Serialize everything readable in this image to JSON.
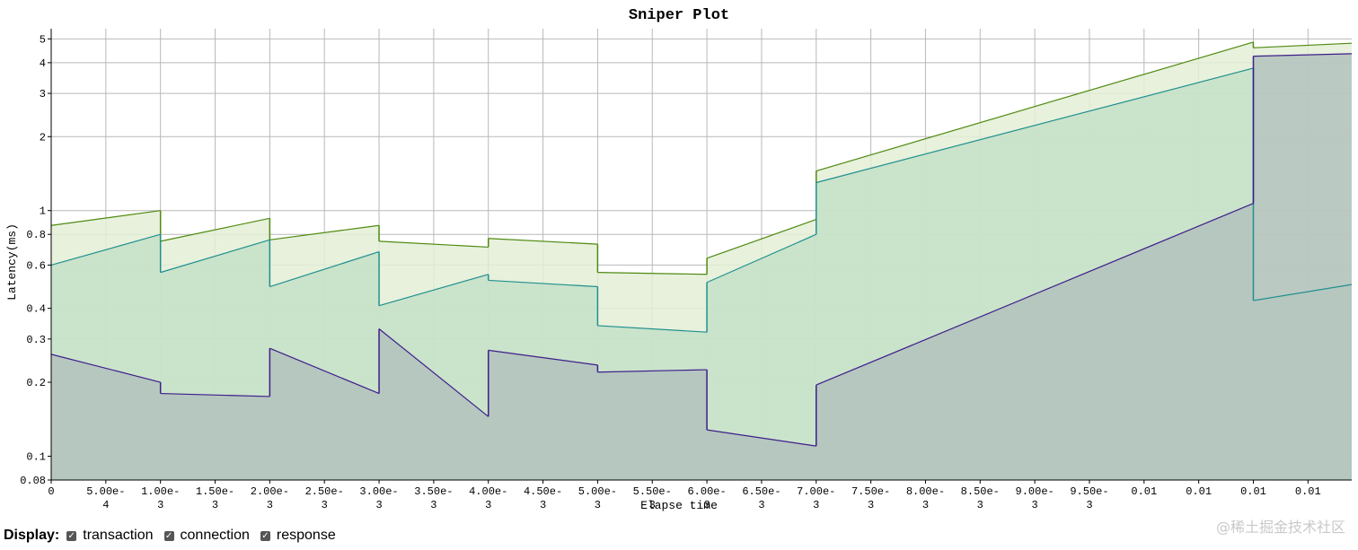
{
  "chart_data": {
    "type": "area",
    "title": "Sniper Plot",
    "xlabel": "Elapse time",
    "ylabel": "Latency(ms)",
    "y_scale": "log",
    "ylim": [
      0.08,
      5.5
    ],
    "xlim": [
      0,
      0.0119
    ],
    "grid": true,
    "y_ticks": [
      0.08,
      0.1,
      0.2,
      0.3,
      0.4,
      0.6,
      0.8,
      1,
      2,
      3,
      4,
      5
    ],
    "y_tick_labels": [
      "0.08",
      "0.1",
      "0.2",
      "0.3",
      "0.4",
      "0.6",
      "0.8",
      "1",
      "2",
      "3",
      "4",
      "5"
    ],
    "x_ticks": [
      0,
      0.0005,
      0.001,
      0.0015,
      0.002,
      0.0025,
      0.003,
      0.0035,
      0.004,
      0.0045,
      0.005,
      0.0055,
      0.006,
      0.0065,
      0.007,
      0.0075,
      0.008,
      0.0085,
      0.009,
      0.0095,
      0.01,
      0.0105,
      0.011,
      0.0115
    ],
    "x_tick_labels": [
      [
        "0"
      ],
      [
        "5.00e-",
        "4"
      ],
      [
        "1.00e-",
        "3"
      ],
      [
        "1.50e-",
        "3"
      ],
      [
        "2.00e-",
        "3"
      ],
      [
        "2.50e-",
        "3"
      ],
      [
        "3.00e-",
        "3"
      ],
      [
        "3.50e-",
        "3"
      ],
      [
        "4.00e-",
        "3"
      ],
      [
        "4.50e-",
        "3"
      ],
      [
        "5.00e-",
        "3"
      ],
      [
        "5.50e-",
        "3"
      ],
      [
        "6.00e-",
        "3"
      ],
      [
        "6.50e-",
        "3"
      ],
      [
        "7.00e-",
        "3"
      ],
      [
        "7.50e-",
        "3"
      ],
      [
        "8.00e-",
        "3"
      ],
      [
        "8.50e-",
        "3"
      ],
      [
        "9.00e-",
        "3"
      ],
      [
        "9.50e-",
        "3"
      ],
      [
        "0.01"
      ],
      [
        "0.01"
      ],
      [
        "0.01"
      ],
      [
        "0.01"
      ]
    ],
    "series": [
      {
        "name": "transaction",
        "color": "#4f8a10",
        "fill": "#e3eed6",
        "segments": [
          {
            "x0": 0,
            "x1": 0.001,
            "y0": 0.87,
            "y1": 1.0
          },
          {
            "x0": 0.001,
            "x1": 0.002,
            "y0": 0.75,
            "y1": 0.93
          },
          {
            "x0": 0.002,
            "x1": 0.003,
            "y0": 0.76,
            "y1": 0.87
          },
          {
            "x0": 0.003,
            "x1": 0.004,
            "y0": 0.75,
            "y1": 0.71
          },
          {
            "x0": 0.004,
            "x1": 0.005,
            "y0": 0.77,
            "y1": 0.73
          },
          {
            "x0": 0.005,
            "x1": 0.006,
            "y0": 0.56,
            "y1": 0.55
          },
          {
            "x0": 0.006,
            "x1": 0.007,
            "y0": 0.64,
            "y1": 0.92
          },
          {
            "x0": 0.007,
            "x1": 0.011,
            "y0": 1.45,
            "y1": 4.85
          },
          {
            "x0": 0.011,
            "x1": 0.0119,
            "y0": 4.6,
            "y1": 4.8
          }
        ]
      },
      {
        "name": "connection",
        "color": "#20908f",
        "fill": "#c4e0c8",
        "segments": [
          {
            "x0": 0,
            "x1": 0.001,
            "y0": 0.6,
            "y1": 0.8
          },
          {
            "x0": 0.001,
            "x1": 0.002,
            "y0": 0.56,
            "y1": 0.76
          },
          {
            "x0": 0.002,
            "x1": 0.003,
            "y0": 0.49,
            "y1": 0.68
          },
          {
            "x0": 0.003,
            "x1": 0.004,
            "y0": 0.41,
            "y1": 0.55
          },
          {
            "x0": 0.004,
            "x1": 0.005,
            "y0": 0.52,
            "y1": 0.49
          },
          {
            "x0": 0.005,
            "x1": 0.006,
            "y0": 0.34,
            "y1": 0.32
          },
          {
            "x0": 0.006,
            "x1": 0.007,
            "y0": 0.51,
            "y1": 0.8
          },
          {
            "x0": 0.007,
            "x1": 0.011,
            "y0": 1.3,
            "y1": 3.8
          },
          {
            "x0": 0.011,
            "x1": 0.0119,
            "y0": 0.43,
            "y1": 0.5
          }
        ]
      },
      {
        "name": "response",
        "color": "#3e1d8c",
        "fill": "#b2c2bc",
        "segments": [
          {
            "x0": 0,
            "x1": 0.001,
            "y0": 0.26,
            "y1": 0.2
          },
          {
            "x0": 0.001,
            "x1": 0.002,
            "y0": 0.18,
            "y1": 0.175
          },
          {
            "x0": 0.002,
            "x1": 0.003,
            "y0": 0.275,
            "y1": 0.18
          },
          {
            "x0": 0.003,
            "x1": 0.004,
            "y0": 0.33,
            "y1": 0.145
          },
          {
            "x0": 0.004,
            "x1": 0.005,
            "y0": 0.27,
            "y1": 0.235
          },
          {
            "x0": 0.005,
            "x1": 0.006,
            "y0": 0.22,
            "y1": 0.225
          },
          {
            "x0": 0.006,
            "x1": 0.007,
            "y0": 0.128,
            "y1": 0.11
          },
          {
            "x0": 0.007,
            "x1": 0.011,
            "y0": 0.195,
            "y1": 1.07
          },
          {
            "x0": 0.011,
            "x1": 0.0119,
            "y0": 4.25,
            "y1": 4.35
          }
        ]
      }
    ]
  },
  "controls": {
    "display_label": "Display:",
    "checkboxes": [
      {
        "label": "transaction",
        "checked": true
      },
      {
        "label": "connection",
        "checked": true
      },
      {
        "label": "response",
        "checked": true
      }
    ]
  },
  "watermark": "@稀土掘金技术社区"
}
